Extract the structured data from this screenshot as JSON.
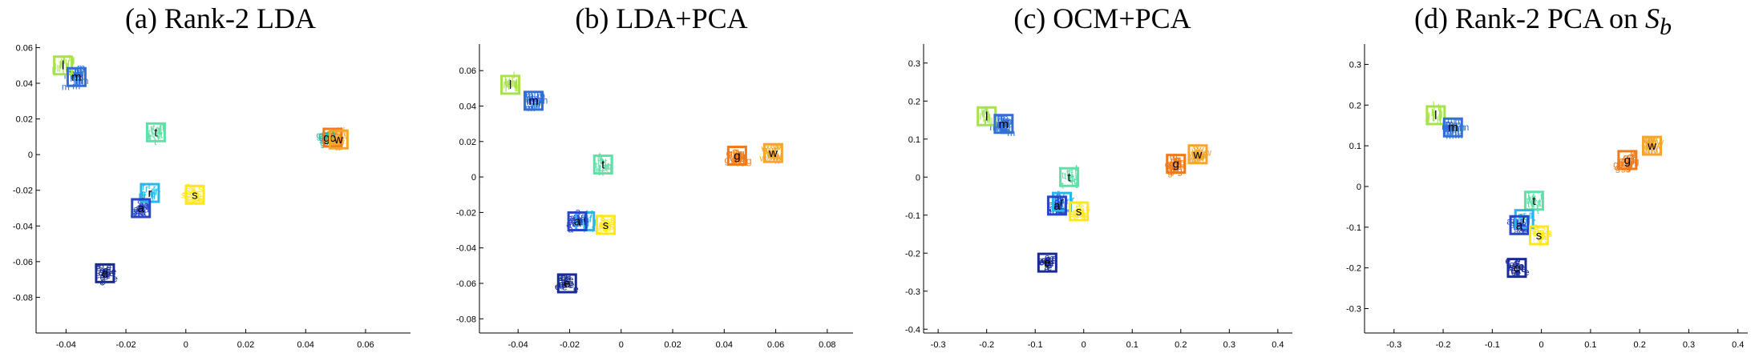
{
  "figure": {
    "panels": [
      {
        "label": "(a) Rank-2 LDA"
      },
      {
        "label": "(b) LDA+PCA"
      },
      {
        "label": "(c) OCM+PCA"
      },
      {
        "label": "(d) Rank-2 PCA on ",
        "label_math": "S",
        "label_sub": "b"
      }
    ]
  },
  "chart_data": [
    {
      "type": "scatter",
      "title": "(a) Rank-2 LDA",
      "xlim": [
        -0.05,
        0.075
      ],
      "ylim": [
        -0.1,
        0.062
      ],
      "xticks": [
        -0.04,
        -0.02,
        0,
        0.02,
        0.04,
        0.06
      ],
      "xtick_labels": [
        "-0.04",
        "-0.02",
        "0",
        "0.02",
        "0.04",
        "0.06"
      ],
      "yticks": [
        -0.08,
        -0.06,
        -0.04,
        -0.02,
        0,
        0.02,
        0.04,
        0.06
      ],
      "ytick_labels": [
        "-0.08",
        "-0.06",
        "-0.04",
        "-0.02",
        "0",
        "0.02",
        "0.04",
        "0.06"
      ],
      "grid": false,
      "clusters": [
        {
          "name": "l",
          "color": "#a6e34a",
          "center": [
            -0.041,
            0.05
          ],
          "box": true
        },
        {
          "name": "m",
          "color": "#2f6fd6",
          "center": [
            -0.0365,
            0.0435
          ],
          "box": true
        },
        {
          "name": "t",
          "color": "#5fe0a8",
          "center": [
            -0.01,
            0.0125
          ],
          "box": true
        },
        {
          "name": "r",
          "color": "#28b7e8",
          "center": [
            -0.012,
            -0.0215
          ],
          "box": true
        },
        {
          "name": "a",
          "color": "#2a46c6",
          "center": [
            -0.015,
            -0.03
          ],
          "box": true
        },
        {
          "name": "s",
          "color": "#ffe816",
          "center": [
            0.003,
            -0.0225
          ],
          "box": true
        },
        {
          "name": "e",
          "color": "#172a96",
          "center": [
            -0.027,
            -0.0665
          ],
          "box": true
        },
        {
          "name": "c",
          "color": "#f07a1a",
          "center": [
            0.049,
            0.0095
          ],
          "box": true
        },
        {
          "name": "g",
          "color": "#2fb8a0",
          "center": [
            0.047,
            0.0095
          ],
          "box": false
        },
        {
          "name": "w",
          "color": "#f5a62a",
          "center": [
            0.051,
            0.0085
          ],
          "box": true
        }
      ]
    },
    {
      "type": "scatter",
      "title": "(b) LDA+PCA",
      "xlim": [
        -0.055,
        0.09
      ],
      "ylim": [
        -0.088,
        0.075
      ],
      "xticks": [
        -0.04,
        -0.02,
        0,
        0.02,
        0.04,
        0.06,
        0.08
      ],
      "xtick_labels": [
        "-0.04",
        "-0.02",
        "0",
        "0.02",
        "0.04",
        "0.06",
        "0.08"
      ],
      "yticks": [
        -0.08,
        -0.06,
        -0.04,
        -0.02,
        0,
        0.02,
        0.04,
        0.06
      ],
      "ytick_labels": [
        "-0.08",
        "-0.06",
        "-0.04",
        "-0.02",
        "0",
        "0.02",
        "0.04",
        "0.06"
      ],
      "grid": false,
      "clusters": [
        {
          "name": "l",
          "color": "#a6e34a",
          "center": [
            -0.043,
            0.052
          ],
          "box": true
        },
        {
          "name": "m",
          "color": "#2f6fd6",
          "center": [
            -0.034,
            0.043
          ],
          "box": true
        },
        {
          "name": "t",
          "color": "#5fe0a8",
          "center": [
            -0.007,
            0.007
          ],
          "box": true
        },
        {
          "name": "f",
          "color": "#28b7e8",
          "center": [
            -0.014,
            -0.025
          ],
          "box": true
        },
        {
          "name": "a",
          "color": "#2a46c6",
          "center": [
            -0.017,
            -0.025
          ],
          "box": true
        },
        {
          "name": "s",
          "color": "#ffe816",
          "center": [
            -0.006,
            -0.027
          ],
          "box": true
        },
        {
          "name": "e",
          "color": "#172a96",
          "center": [
            -0.021,
            -0.06
          ],
          "box": true
        },
        {
          "name": "g",
          "color": "#f07a1a",
          "center": [
            0.045,
            0.012
          ],
          "box": true
        },
        {
          "name": "w",
          "color": "#f5a62a",
          "center": [
            0.059,
            0.0135
          ],
          "box": true
        }
      ]
    },
    {
      "type": "scatter",
      "title": "(c) OCM+PCA",
      "xlim": [
        -0.33,
        0.43
      ],
      "ylim": [
        -0.41,
        0.35
      ],
      "xticks": [
        -0.3,
        -0.2,
        -0.1,
        0,
        0.1,
        0.2,
        0.3,
        0.4
      ],
      "xtick_labels": [
        "-0.3",
        "-0.2",
        "-0.1",
        "0",
        "0.1",
        "0.2",
        "0.3",
        "0.4"
      ],
      "yticks": [
        -0.4,
        -0.3,
        -0.2,
        -0.1,
        0,
        0.1,
        0.2,
        0.3
      ],
      "ytick_labels": [
        "-0.4",
        "-0.3",
        "-0.2",
        "-0.1",
        "0",
        "0.1",
        "0.2",
        "0.3"
      ],
      "grid": false,
      "clusters": [
        {
          "name": "l",
          "color": "#a6e34a",
          "center": [
            -0.2,
            0.16
          ],
          "box": true
        },
        {
          "name": "m",
          "color": "#2f6fd6",
          "center": [
            -0.165,
            0.14
          ],
          "box": true
        },
        {
          "name": "t",
          "color": "#5fe0a8",
          "center": [
            -0.03,
            0.0
          ],
          "box": true
        },
        {
          "name": "r",
          "color": "#28b7e8",
          "center": [
            -0.045,
            -0.065
          ],
          "box": true
        },
        {
          "name": "a",
          "color": "#2a46c6",
          "center": [
            -0.055,
            -0.075
          ],
          "box": true
        },
        {
          "name": "s",
          "color": "#ffe816",
          "center": [
            -0.01,
            -0.09
          ],
          "box": true
        },
        {
          "name": "e",
          "color": "#172a96",
          "center": [
            -0.075,
            -0.225
          ],
          "box": true
        },
        {
          "name": "g",
          "color": "#f07a1a",
          "center": [
            0.19,
            0.035
          ],
          "box": true
        },
        {
          "name": "w",
          "color": "#f5a62a",
          "center": [
            0.235,
            0.06
          ],
          "box": true
        }
      ]
    },
    {
      "type": "scatter",
      "title": "(d) Rank-2 PCA on S_b",
      "xlim": [
        -0.36,
        0.42
      ],
      "ylim": [
        -0.36,
        0.35
      ],
      "xticks": [
        -0.3,
        -0.2,
        -0.1,
        0,
        0.1,
        0.2,
        0.3,
        0.4
      ],
      "xtick_labels": [
        "-0.3",
        "-0.2",
        "-0.1",
        "0",
        "0.1",
        "0.2",
        "0.3",
        "0.4"
      ],
      "yticks": [
        -0.3,
        -0.2,
        -0.1,
        0,
        0.1,
        0.2,
        0.3
      ],
      "ytick_labels": [
        "-0.3",
        "-0.2",
        "-0.1",
        "0",
        "0.1",
        "0.2",
        "0.3"
      ],
      "grid": false,
      "clusters": [
        {
          "name": "l",
          "color": "#a6e34a",
          "center": [
            -0.215,
            0.175
          ],
          "box": true
        },
        {
          "name": "m",
          "color": "#2f6fd6",
          "center": [
            -0.18,
            0.145
          ],
          "box": true
        },
        {
          "name": "t",
          "color": "#5fe0a8",
          "center": [
            -0.015,
            -0.035
          ],
          "box": true
        },
        {
          "name": "r",
          "color": "#28b7e8",
          "center": [
            -0.035,
            -0.08
          ],
          "box": true
        },
        {
          "name": "a",
          "color": "#2a46c6",
          "center": [
            -0.045,
            -0.095
          ],
          "box": true
        },
        {
          "name": "s",
          "color": "#ffe816",
          "center": [
            -0.005,
            -0.12
          ],
          "box": true
        },
        {
          "name": "e",
          "color": "#172a96",
          "center": [
            -0.05,
            -0.2
          ],
          "box": true
        },
        {
          "name": "g",
          "color": "#f07a1a",
          "center": [
            0.175,
            0.065
          ],
          "box": true
        },
        {
          "name": "w",
          "color": "#f5a62a",
          "center": [
            0.225,
            0.1
          ],
          "box": true
        }
      ]
    }
  ]
}
